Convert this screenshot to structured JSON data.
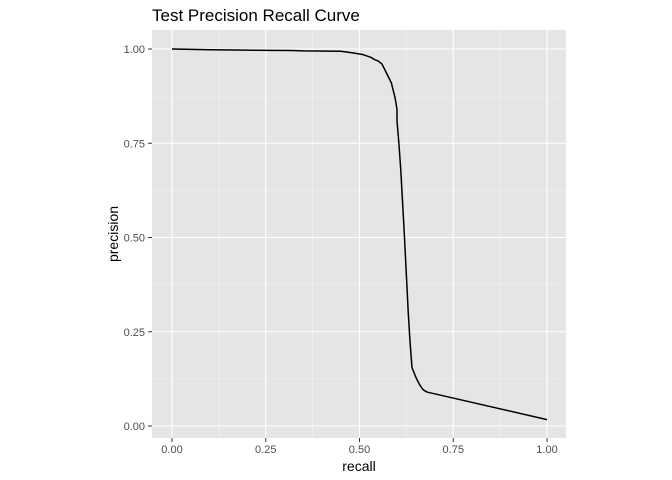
{
  "chart_data": {
    "type": "line",
    "title": "Test Precision Recall Curve",
    "xlabel": "recall",
    "ylabel": "precision",
    "xlim": [
      0,
      1
    ],
    "ylim": [
      0,
      1
    ],
    "x_ticks": [
      "0.00",
      "0.25",
      "0.50",
      "0.75",
      "1.00"
    ],
    "y_ticks": [
      "0.00",
      "0.25",
      "0.50",
      "0.75",
      "1.00"
    ],
    "grid": true,
    "legend": "none",
    "panel_color": "#e5e5e5",
    "grid_color": "#ffffff",
    "line_color": "#000000",
    "series": [
      {
        "x": [
          0.0,
          0.1,
          0.2,
          0.32,
          0.35,
          0.45,
          0.48,
          0.51,
          0.53,
          0.54,
          0.55,
          0.56,
          0.565,
          0.575,
          0.585,
          0.59,
          0.595,
          0.6,
          0.6,
          0.605,
          0.61,
          0.615,
          0.62,
          0.625,
          0.63,
          0.635,
          0.64,
          0.65,
          0.66,
          0.67,
          0.68,
          1.0
        ],
        "y": [
          1.0,
          0.998,
          0.997,
          0.996,
          0.995,
          0.994,
          0.99,
          0.985,
          0.978,
          0.972,
          0.968,
          0.96,
          0.95,
          0.93,
          0.91,
          0.89,
          0.87,
          0.84,
          0.81,
          0.75,
          0.68,
          0.59,
          0.5,
          0.4,
          0.3,
          0.22,
          0.155,
          0.13,
          0.11,
          0.096,
          0.09,
          0.017
        ]
      }
    ]
  }
}
